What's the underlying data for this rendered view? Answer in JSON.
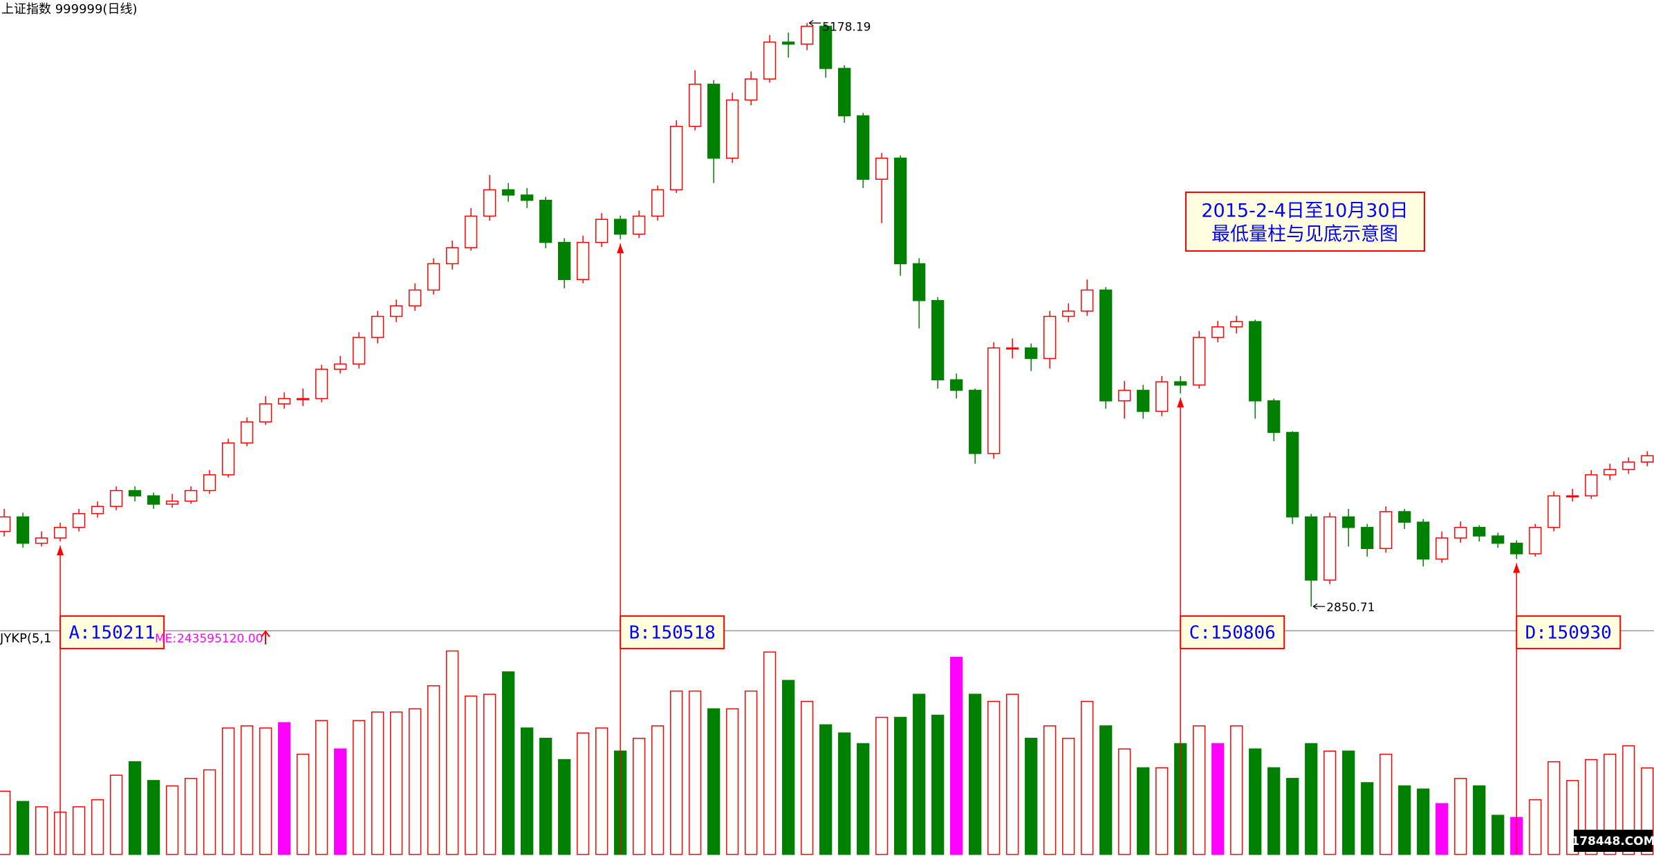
{
  "chart_data": {
    "type": "candlestick",
    "title": "上证指数 999999(日线)",
    "info_box": [
      "2015-2-4日至10月30日",
      "最低量柱与见底示意图"
    ],
    "indicator_name": "JYKP(5,1",
    "volume_name": "ME:",
    "volume_readout": {
      "value": 243595120,
      "label": "243595120.00"
    },
    "watermark": "178448.COM",
    "up_color": "#ff0000",
    "down_color": "#008000",
    "highlight_color": "#ff00ff",
    "annotation_text_color": "#0000ff",
    "ylim": [
      2758,
      5270
    ],
    "ygrid": [
      3000,
      3200,
      3400,
      3600,
      3800,
      4000,
      4200,
      4400,
      4600,
      4800,
      5000
    ],
    "volume_ylim": [
      0,
      624000000
    ],
    "volume_grid": [
      100000000,
      200000000,
      300000000,
      400000000,
      500000000
    ],
    "open": [
      3150,
      3208,
      3103,
      3124,
      3166,
      3221,
      3250,
      3313,
      3292,
      3259,
      3271,
      3313,
      3376,
      3503,
      3587,
      3659,
      3680,
      3680,
      3797,
      3818,
      3924,
      4008,
      4050,
      4113,
      4218,
      4282,
      4408,
      4513,
      4492,
      4471,
      4303,
      4155,
      4303,
      4395,
      4336,
      4408,
      4513,
      4766,
      4934,
      4639,
      4871,
      4955,
      5102,
      5094,
      5165,
      4997,
      4808,
      4555,
      4639,
      4218,
      4071,
      3755,
      3713,
      3461,
      3882,
      3882,
      3840,
      4008,
      4029,
      4113,
      3671,
      3713,
      3629,
      3747,
      3734,
      3924,
      3966,
      3987,
      3671,
      3545,
      3208,
      2956,
      3208,
      3166,
      3082,
      3229,
      3187,
      3040,
      3124,
      3166,
      3132,
      3103,
      3061,
      3166,
      3292,
      3292,
      3376,
      3397,
      3427
    ],
    "high": [
      3240,
      3225,
      3150,
      3185,
      3240,
      3270,
      3330,
      3330,
      3305,
      3300,
      3330,
      3395,
      3520,
      3605,
      3690,
      3705,
      3720,
      3815,
      3850,
      3945,
      4030,
      4075,
      4140,
      4240,
      4310,
      4440,
      4572,
      4540,
      4520,
      4485,
      4320,
      4330,
      4420,
      4410,
      4430,
      4530,
      4790,
      4990,
      4950,
      4900,
      4985,
      5130,
      5140,
      5178.19,
      5175,
      5010,
      4820,
      4660,
      4650,
      4240,
      4085,
      3780,
      3720,
      3905,
      3920,
      3900,
      4030,
      4060,
      4155,
      4125,
      3750,
      3735,
      3770,
      3770,
      3950,
      3990,
      4010,
      3995,
      3680,
      3550,
      3220,
      3225,
      3240,
      3180,
      3250,
      3240,
      3200,
      3150,
      3190,
      3175,
      3145,
      3115,
      3180,
      3310,
      3320,
      3395,
      3420,
      3445,
      3470
    ],
    "low": [
      3130,
      3085,
      3090,
      3110,
      3150,
      3205,
      3235,
      3270,
      3240,
      3245,
      3260,
      3300,
      3365,
      3490,
      3575,
      3640,
      3650,
      3665,
      3780,
      3800,
      3900,
      3985,
      4030,
      4095,
      4195,
      4270,
      4390,
      4465,
      4440,
      4280,
      4120,
      4140,
      4285,
      4315,
      4320,
      4390,
      4500,
      4750,
      4540,
      4620,
      4850,
      4940,
      5040,
      5070,
      4960,
      4780,
      4520,
      4380,
      4170,
      3960,
      3720,
      3680,
      3420,
      3440,
      3840,
      3790,
      3800,
      3985,
      4010,
      3640,
      3600,
      3600,
      3610,
      3700,
      3720,
      3905,
      3940,
      3600,
      3510,
      3180,
      2850.71,
      2940,
      3090,
      3050,
      3065,
      3160,
      3010,
      3025,
      3105,
      3110,
      3085,
      3040,
      3050,
      3150,
      3270,
      3280,
      3355,
      3380,
      3410
    ],
    "close": [
      3208,
      3103,
      3124,
      3166,
      3221,
      3250,
      3313,
      3292,
      3259,
      3271,
      3313,
      3376,
      3503,
      3587,
      3659,
      3680,
      3680,
      3797,
      3818,
      3924,
      4008,
      4050,
      4113,
      4218,
      4282,
      4408,
      4513,
      4492,
      4471,
      4303,
      4155,
      4303,
      4395,
      4336,
      4408,
      4513,
      4766,
      4934,
      4639,
      4871,
      4955,
      5102,
      5094,
      5165,
      4997,
      4808,
      4555,
      4639,
      4218,
      4071,
      3755,
      3713,
      3461,
      3882,
      3882,
      3840,
      4008,
      4029,
      4113,
      3671,
      3713,
      3629,
      3747,
      3734,
      3924,
      3966,
      3987,
      3671,
      3545,
      3208,
      2956,
      3208,
      3166,
      3082,
      3229,
      3187,
      3040,
      3124,
      3166,
      3132,
      3103,
      3061,
      3166,
      3292,
      3292,
      3376,
      3397,
      3427,
      3452
    ],
    "volume": [
      178000000,
      149000000,
      134000000,
      119000000,
      134000000,
      154000000,
      223000000,
      261000000,
      208000000,
      193000000,
      214000000,
      238000000,
      356000000,
      362000000,
      356000000,
      371000000,
      282000000,
      377000000,
      297000000,
      377000000,
      401000000,
      401000000,
      410000000,
      475000000,
      573000000,
      446000000,
      451000000,
      514000000,
      356000000,
      327000000,
      267000000,
      342000000,
      356000000,
      291000000,
      327000000,
      362000000,
      460000000,
      460000000,
      410000000,
      410000000,
      460000000,
      570000000,
      490000000,
      431000000,
      365000000,
      342000000,
      312000000,
      386000000,
      386000000,
      451000000,
      392000000,
      555000000,
      451000000,
      431000000,
      451000000,
      327000000,
      362000000,
      327000000,
      431000000,
      362000000,
      297000000,
      244000000,
      244000000,
      312000000,
      362000000,
      312000000,
      362000000,
      297000000,
      244000000,
      214000000,
      312000000,
      291000000,
      291000000,
      202000000,
      282000000,
      193000000,
      184000000,
      143000000,
      214000000,
      193000000,
      110000000,
      104000000,
      154000000,
      261000000,
      208000000,
      267000000,
      282000000,
      306000000,
      243595120
    ],
    "highlight": [
      15,
      18,
      51,
      65,
      77,
      81
    ],
    "price_labels": [
      {
        "index": 43,
        "field": "high"
      },
      {
        "index": 70,
        "field": "low"
      }
    ],
    "annotations": [
      {
        "text": "A:150211",
        "index": 3
      },
      {
        "text": "B:150518",
        "index": 33
      },
      {
        "text": "C:150806",
        "index": 63
      },
      {
        "text": "D:150930",
        "index": 81
      }
    ]
  }
}
